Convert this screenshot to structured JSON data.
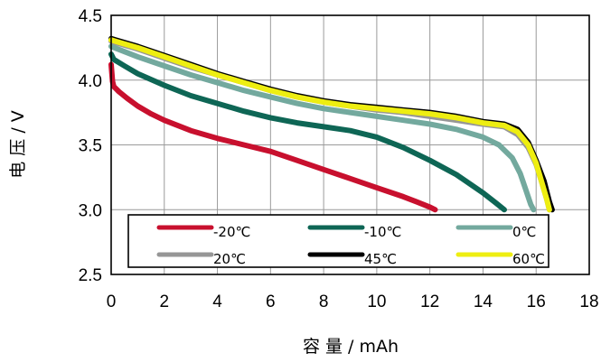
{
  "chart_data": {
    "type": "line",
    "title": "",
    "xlabel": "容 量 / mAh",
    "ylabel": "电 压 / V",
    "xlim": [
      0,
      18
    ],
    "ylim": [
      2.5,
      4.5
    ],
    "xticks": [
      0,
      2,
      4,
      6,
      8,
      10,
      12,
      14,
      16,
      18
    ],
    "yticks": [
      2.5,
      3.0,
      3.5,
      4.0,
      4.5
    ],
    "ytick_labels": [
      "2.5",
      "3.0",
      "3.5",
      "4.0",
      "4.5"
    ],
    "grid": true,
    "legend_position": "bottom, inside plot, 3 columns",
    "series": [
      {
        "name": "-20℃",
        "color": "#c8102e",
        "x": [
          0,
          0.05,
          0.1,
          0.3,
          0.6,
          1,
          1.5,
          2,
          3,
          4,
          5,
          6,
          7,
          8,
          9,
          10,
          11,
          11.5,
          12,
          12.2
        ],
        "y": [
          4.12,
          3.99,
          3.95,
          3.91,
          3.86,
          3.8,
          3.74,
          3.69,
          3.61,
          3.55,
          3.5,
          3.45,
          3.38,
          3.31,
          3.24,
          3.17,
          3.1,
          3.06,
          3.02,
          3.0
        ]
      },
      {
        "name": "-10℃",
        "color": "#0e6655",
        "x": [
          0,
          0.1,
          0.5,
          1,
          2,
          3,
          4,
          5,
          6,
          7,
          8,
          9,
          10,
          11,
          12,
          13,
          14,
          14.5,
          14.8
        ],
        "y": [
          4.2,
          4.16,
          4.11,
          4.05,
          3.96,
          3.88,
          3.82,
          3.76,
          3.71,
          3.67,
          3.64,
          3.61,
          3.56,
          3.48,
          3.38,
          3.27,
          3.13,
          3.05,
          3.0
        ]
      },
      {
        "name": "0℃",
        "color": "#73a99e",
        "x": [
          0,
          0.5,
          1,
          2,
          3,
          4,
          5,
          6,
          7,
          8,
          9,
          10,
          11,
          12,
          13,
          14,
          14.6,
          15.1,
          15.4,
          15.6,
          15.8,
          15.9
        ],
        "y": [
          4.26,
          4.22,
          4.18,
          4.11,
          4.04,
          3.98,
          3.92,
          3.87,
          3.82,
          3.78,
          3.75,
          3.72,
          3.69,
          3.66,
          3.62,
          3.56,
          3.5,
          3.4,
          3.28,
          3.16,
          3.04,
          3.0
        ]
      },
      {
        "name": "20℃",
        "color": "#969696",
        "x": [
          0,
          0.5,
          1,
          2,
          3,
          4,
          5,
          6,
          7,
          8,
          9,
          10,
          11,
          12,
          13,
          14,
          14.8,
          15.3,
          15.7,
          16.0,
          16.2,
          16.4,
          16.5
        ],
        "y": [
          4.3,
          4.27,
          4.24,
          4.17,
          4.1,
          4.04,
          3.98,
          3.92,
          3.87,
          3.83,
          3.8,
          3.77,
          3.75,
          3.72,
          3.69,
          3.66,
          3.64,
          3.58,
          3.48,
          3.35,
          3.22,
          3.08,
          3.0
        ]
      },
      {
        "name": "45℃",
        "color": "#000000",
        "x": [
          0,
          0.5,
          1,
          2,
          3,
          4,
          5,
          6,
          7,
          8,
          9,
          10,
          11,
          12,
          13,
          14,
          14.8,
          15.3,
          15.7,
          16.0,
          16.3,
          16.5,
          16.6
        ],
        "y": [
          4.32,
          4.29,
          4.26,
          4.19,
          4.12,
          4.05,
          3.99,
          3.93,
          3.88,
          3.84,
          3.81,
          3.79,
          3.77,
          3.75,
          3.72,
          3.68,
          3.66,
          3.62,
          3.52,
          3.38,
          3.22,
          3.06,
          3.0
        ]
      },
      {
        "name": "60℃",
        "color": "#eeee11",
        "x": [
          0,
          0.5,
          1,
          2,
          3,
          4,
          5,
          6,
          7,
          8,
          9,
          10,
          11,
          12,
          13,
          14,
          14.8,
          15.3,
          15.7,
          16.0,
          16.2,
          16.4,
          16.5
        ],
        "y": [
          4.31,
          4.28,
          4.25,
          4.18,
          4.11,
          4.04,
          3.98,
          3.92,
          3.87,
          3.83,
          3.8,
          3.78,
          3.76,
          3.74,
          3.71,
          3.67,
          3.65,
          3.6,
          3.5,
          3.36,
          3.22,
          3.08,
          3.0
        ]
      }
    ]
  }
}
